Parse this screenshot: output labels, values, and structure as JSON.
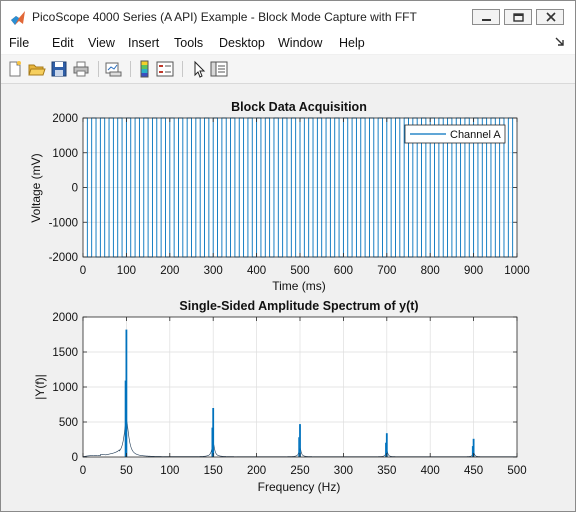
{
  "window": {
    "title": "PicoScope 4000 Series (A API) Example - Block Mode Capture with FFT"
  },
  "menubar": {
    "items": [
      "File",
      "Edit",
      "View",
      "Insert",
      "Tools",
      "Desktop",
      "Window",
      "Help"
    ]
  },
  "toolbar": {
    "buttons": [
      "new-figure-icon",
      "open-folder-icon",
      "save-icon",
      "print-icon",
      "link-plot-icon",
      "insert-colorbar-icon",
      "insert-legend-icon",
      "edit-plot-cursor-icon",
      "property-inspector-icon"
    ]
  },
  "colors": {
    "series": "#0072bd",
    "title_bar_bg": "#ffffff",
    "figure_bg": "#f0f0f0"
  },
  "chart_data": [
    {
      "type": "line",
      "title": "Block Data Acquisition",
      "xlabel": "Time (ms)",
      "ylabel": "Voltage (mV)",
      "xlim": [
        0,
        1000
      ],
      "ylim": [
        -2000,
        2000
      ],
      "xticks": [
        0,
        100,
        200,
        300,
        400,
        500,
        600,
        700,
        800,
        900,
        1000
      ],
      "yticks": [
        -2000,
        -1000,
        0,
        1000,
        2000
      ],
      "grid": true,
      "legend": "top-right",
      "series": [
        {
          "name": "Channel A",
          "description": "square wave",
          "frequency_hz": 50,
          "amplitude": 2000
        }
      ]
    },
    {
      "type": "line",
      "title": "Single-Sided Amplitude Spectrum of y(t)",
      "xlabel": "Frequency (Hz)",
      "ylabel": "|Y(f)|",
      "xlim": [
        0,
        500
      ],
      "ylim": [
        0,
        2000
      ],
      "xticks": [
        0,
        50,
        100,
        150,
        200,
        250,
        300,
        350,
        400,
        450,
        500
      ],
      "yticks": [
        0,
        500,
        1000,
        1500,
        2000
      ],
      "grid": true,
      "peaks": [
        {
          "x": 50,
          "y": 1820
        },
        {
          "x": 150,
          "y": 700
        },
        {
          "x": 250,
          "y": 470
        },
        {
          "x": 350,
          "y": 340
        },
        {
          "x": 450,
          "y": 260
        }
      ]
    }
  ]
}
